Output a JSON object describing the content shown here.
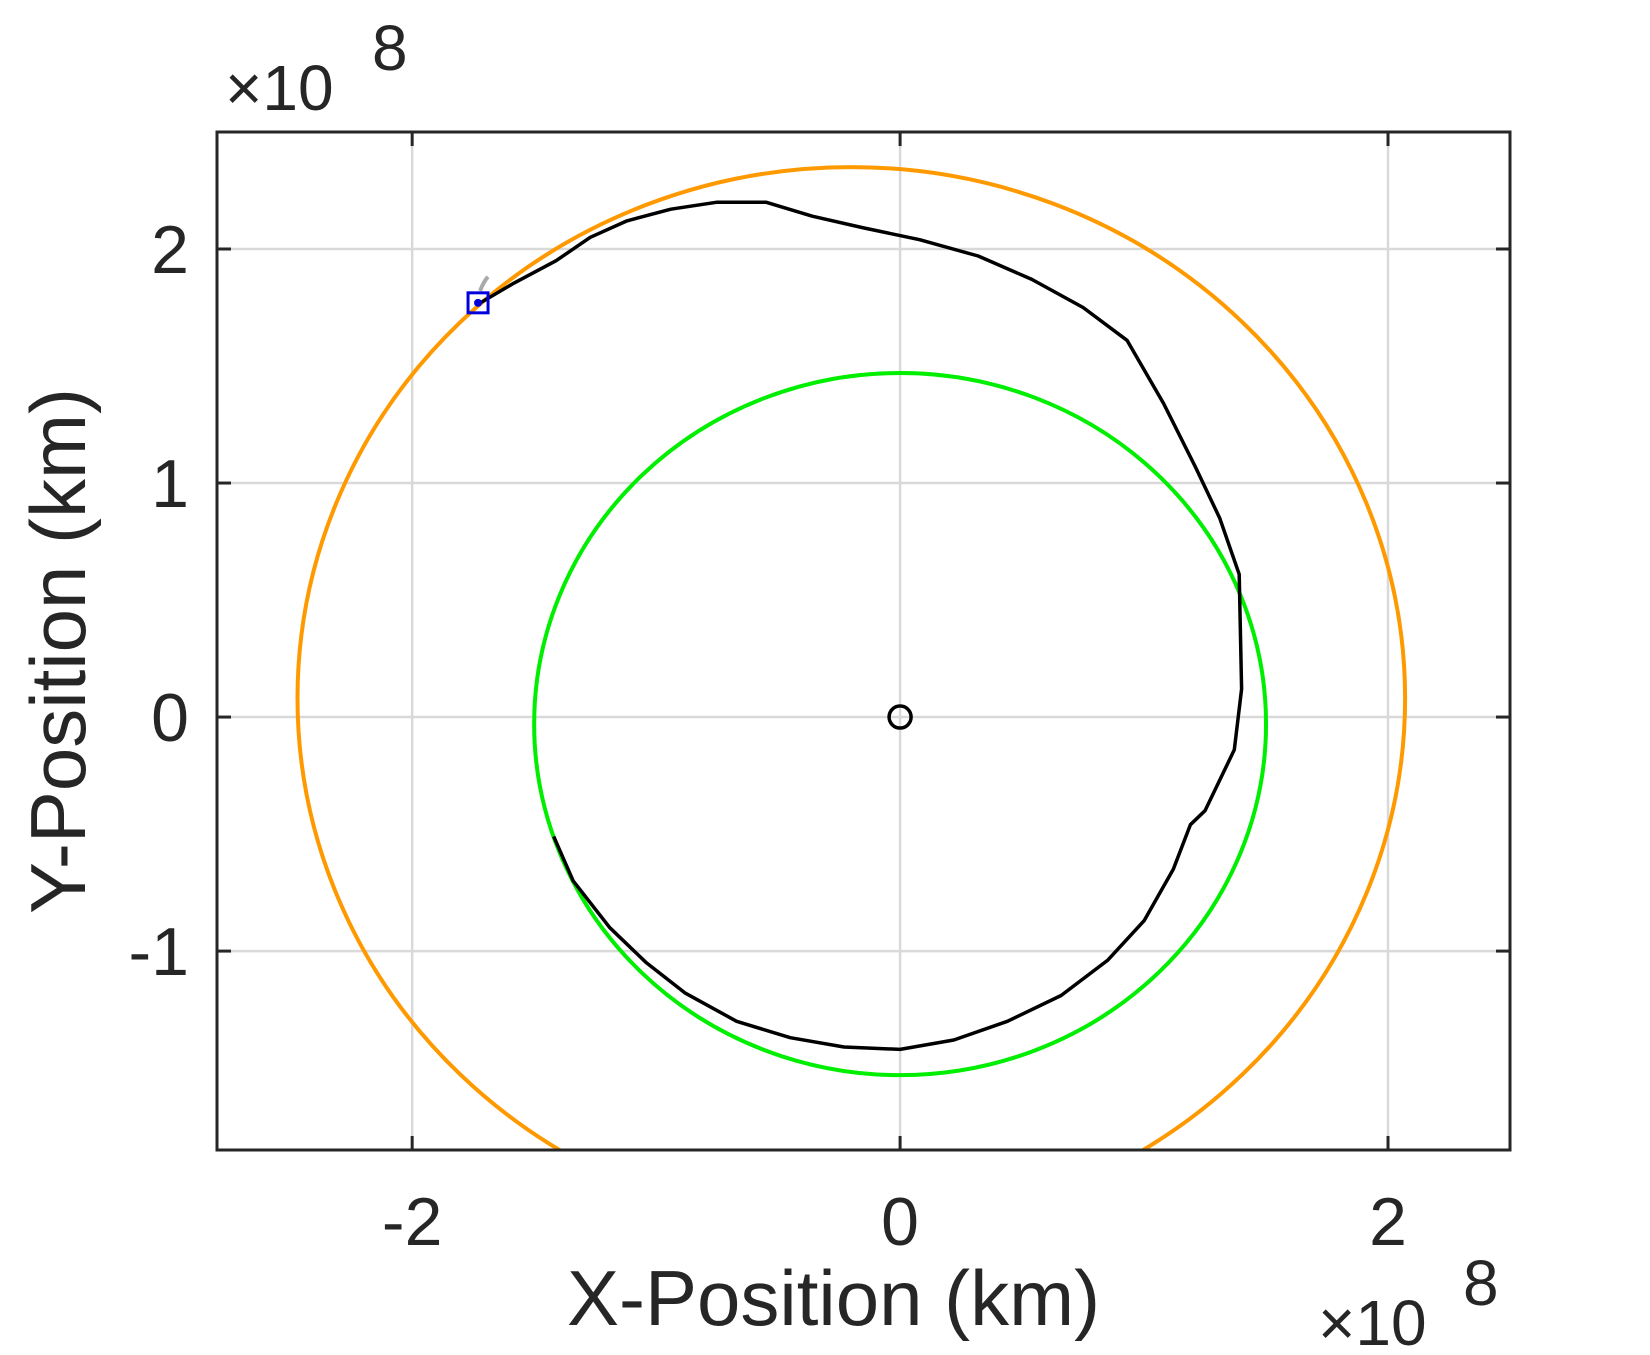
{
  "chart_data": {
    "type": "line",
    "title": "",
    "xlabel": "X-Position (km)",
    "ylabel": "Y-Position (km)",
    "x_multiplier": "×10",
    "x_multiplier_exp": "8",
    "y_multiplier": "×10",
    "y_multiplier_exp": "8",
    "xlim": [
      -2.8,
      2.5
    ],
    "ylim": [
      -1.85,
      2.5
    ],
    "xticks": [
      -2,
      0,
      2
    ],
    "xtick_labels": [
      "-2",
      "0",
      "2"
    ],
    "yticks": [
      -1,
      0,
      1,
      2
    ],
    "ytick_labels": [
      "-1",
      "0",
      "1",
      "2"
    ],
    "grid": true,
    "colors": {
      "earth_orbit": "#00ee00",
      "mars_orbit": "#ff9900",
      "trajectory": "#000000",
      "marker": "#0000dd",
      "sun": "#000000",
      "grid": "#d9d9d9",
      "axes": "#262626"
    },
    "series": [
      {
        "kind": "circle",
        "center": [
          0.0,
          -0.03
        ],
        "radius": 1.5,
        "color": "#00ee00"
      },
      {
        "kind": "ellipse-arc",
        "center": [
          -0.2,
          0.08
        ],
        "radii": [
          2.27,
          2.27
        ],
        "start_point": [
          -1.37,
          -1.85
        ],
        "end_point": [
          1.0,
          -1.85
        ],
        "color": "#ff9900"
      },
      {
        "kind": "polyline",
        "color": "#000000",
        "x": [
          -1.42,
          -1.34,
          -1.19,
          -1.04,
          -0.88,
          -0.67,
          -0.45,
          -0.23,
          0.0,
          0.22,
          0.44,
          0.66,
          0.85,
          1.0,
          1.12,
          1.19,
          1.25,
          1.37,
          1.4,
          1.39,
          1.31,
          1.21,
          1.08,
          0.93,
          0.75,
          0.54,
          0.32,
          0.08,
          -0.15,
          -0.36,
          -0.55,
          -0.75,
          -0.94,
          -1.12,
          -1.27,
          -1.41,
          -1.59,
          -1.72
        ],
        "y": [
          -0.51,
          -0.7,
          -0.9,
          -1.05,
          -1.18,
          -1.3,
          -1.37,
          -1.41,
          -1.42,
          -1.38,
          -1.3,
          -1.19,
          -1.04,
          -0.87,
          -0.65,
          -0.46,
          -0.4,
          -0.14,
          0.12,
          0.61,
          0.85,
          1.07,
          1.34,
          1.61,
          1.75,
          1.87,
          1.97,
          2.04,
          2.09,
          2.14,
          2.2,
          2.2,
          2.17,
          2.12,
          2.05,
          1.95,
          1.85,
          1.77
        ]
      }
    ],
    "markers": [
      {
        "kind": "sun",
        "x": 0.0,
        "y": 0.0,
        "shape": "circle",
        "color": "#000000"
      },
      {
        "kind": "spacecraft",
        "x": -1.73,
        "y": 1.77,
        "shape": "square-with-dot",
        "color": "#0000dd"
      }
    ]
  }
}
